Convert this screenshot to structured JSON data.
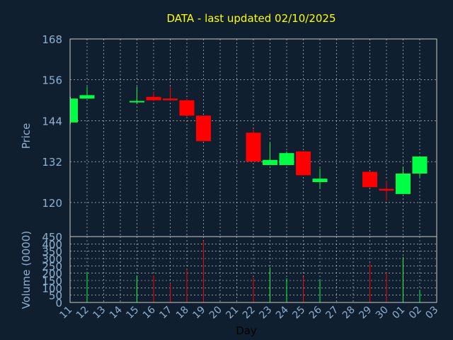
{
  "chart_data": {
    "type": "candlestick",
    "title": "DATA - last updated 02/10/2025",
    "xlabel": "Day",
    "price_panel": {
      "ylabel": "Price",
      "yticks": [
        120,
        132,
        144,
        156,
        168
      ],
      "ylim": [
        110,
        168
      ]
    },
    "volume_panel": {
      "ylabel": "Volume (0000)",
      "yticks": [
        0,
        50,
        100,
        150,
        200,
        250,
        300,
        350,
        400,
        450
      ],
      "ylim": [
        0,
        450
      ]
    },
    "categories": [
      "11",
      "12",
      "13",
      "14",
      "15",
      "16",
      "17",
      "18",
      "19",
      "20",
      "21",
      "22",
      "23",
      "24",
      "25",
      "26",
      "27",
      "28",
      "29",
      "30",
      "01",
      "02",
      "03"
    ],
    "candles": [
      {
        "day": "11",
        "open": 143.5,
        "high": 151.0,
        "low": 143.0,
        "close": 150.5,
        "volume": 0
      },
      {
        "day": "12",
        "open": 150.5,
        "high": 154.0,
        "low": 150.5,
        "close": 151.5,
        "volume": 210
      },
      {
        "day": "15",
        "open": 149.5,
        "high": 154.0,
        "low": 149.0,
        "close": 149.8,
        "volume": 185
      },
      {
        "day": "16",
        "open": 151.0,
        "high": 152.5,
        "low": 149.8,
        "close": 150.0,
        "volume": 185
      },
      {
        "day": "17",
        "open": 150.5,
        "high": 154.0,
        "low": 150.0,
        "close": 150.0,
        "volume": 130
      },
      {
        "day": "18",
        "open": 150.0,
        "high": 150.5,
        "low": 145.0,
        "close": 145.5,
        "volume": 225
      },
      {
        "day": "19",
        "open": 145.5,
        "high": 145.5,
        "low": 138.0,
        "close": 138.0,
        "volume": 420
      },
      {
        "day": "22",
        "open": 140.5,
        "high": 141.5,
        "low": 132.0,
        "close": 132.0,
        "volume": 170
      },
      {
        "day": "23",
        "open": 131.0,
        "high": 137.5,
        "low": 131.0,
        "close": 132.5,
        "volume": 240
      },
      {
        "day": "24",
        "open": 131.0,
        "high": 135.0,
        "low": 131.0,
        "close": 134.5,
        "volume": 165
      },
      {
        "day": "25",
        "open": 135.0,
        "high": 135.0,
        "low": 128.0,
        "close": 128.0,
        "volume": 175
      },
      {
        "day": "26",
        "open": 126.0,
        "high": 130.0,
        "low": 124.0,
        "close": 127.0,
        "volume": 160
      },
      {
        "day": "29",
        "open": 129.0,
        "high": 129.0,
        "low": 124.5,
        "close": 124.5,
        "volume": 265
      },
      {
        "day": "30",
        "open": 124.0,
        "high": 126.5,
        "low": 120.5,
        "close": 123.5,
        "volume": 205
      },
      {
        "day": "01",
        "open": 122.5,
        "high": 130.5,
        "low": 122.5,
        "close": 128.5,
        "volume": 310
      },
      {
        "day": "02",
        "open": 128.5,
        "high": 133.5,
        "low": 127.5,
        "close": 133.5,
        "volume": 85
      }
    ],
    "grid": true,
    "colors": {
      "background": "#0f1f2f",
      "up": "#00ff44",
      "down": "#ff0000",
      "grid": "#e0e0e0",
      "axis": "#c8c8c8",
      "tick_label": "#8fb0d0",
      "title": "#ffff00"
    }
  }
}
